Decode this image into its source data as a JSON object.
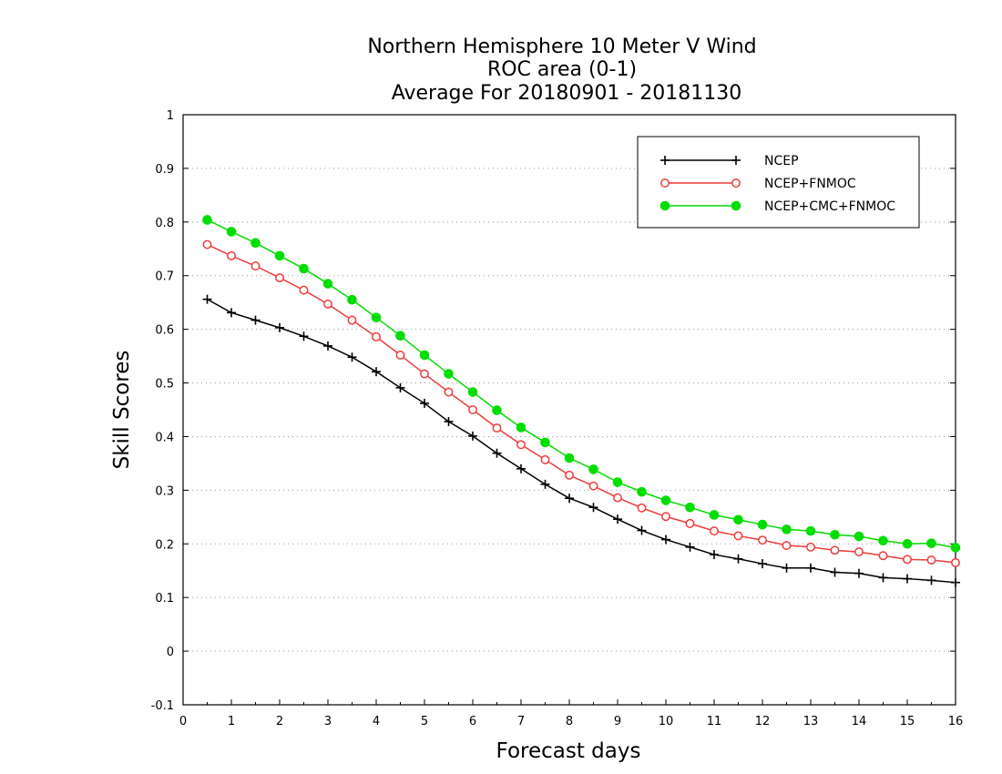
{
  "chart_data": {
    "type": "line",
    "title_lines": [
      "Northern Hemisphere 10 Meter V Wind",
      "ROC area (0-1)",
      "Average For 20180901 - 20181130"
    ],
    "xlabel": "Forecast days",
    "ylabel": "Skill Scores",
    "xlim": [
      0,
      16
    ],
    "ylim": [
      -0.1,
      1
    ],
    "xticks": [
      0,
      1,
      2,
      3,
      4,
      5,
      6,
      7,
      8,
      9,
      10,
      11,
      12,
      13,
      14,
      15,
      16
    ],
    "xtick_labels": [
      "0",
      "1",
      "2",
      "3",
      "4",
      "5",
      "6",
      "7",
      "8",
      "9",
      "10",
      "11",
      "12",
      "13",
      "14",
      "15",
      "16"
    ],
    "yticks": [
      -0.1,
      0,
      0.1,
      0.2,
      0.3,
      0.4,
      0.5,
      0.6,
      0.7,
      0.8,
      0.9,
      1
    ],
    "ytick_labels": [
      "-0.1",
      "0",
      "0.1",
      "0.2",
      "0.3",
      "0.4",
      "0.5",
      "0.6",
      "0.7",
      "0.8",
      "0.9",
      "1"
    ],
    "grid": "horizontal dotted",
    "legend_position": "top-right",
    "x": [
      0.5,
      1,
      1.5,
      2,
      2.5,
      3,
      3.5,
      4,
      4.5,
      5,
      5.5,
      6,
      6.5,
      7,
      7.5,
      8,
      8.5,
      9,
      9.5,
      10,
      10.5,
      11,
      11.5,
      12,
      12.5,
      13,
      13.5,
      14,
      14.5,
      15,
      15.5,
      16
    ],
    "series": [
      {
        "name": "NCEP",
        "color": "#000000",
        "marker": "plus",
        "values": [
          0.656,
          0.631,
          0.617,
          0.603,
          0.587,
          0.569,
          0.548,
          0.521,
          0.491,
          0.462,
          0.428,
          0.401,
          0.369,
          0.34,
          0.311,
          0.285,
          0.268,
          0.246,
          0.225,
          0.208,
          0.194,
          0.18,
          0.172,
          0.163,
          0.155,
          0.155,
          0.147,
          0.145,
          0.137,
          0.135,
          0.132,
          0.128
        ]
      },
      {
        "name": "NCEP+FNMOC",
        "color": "#ee3b3b",
        "marker": "open-circle",
        "values": [
          0.758,
          0.737,
          0.718,
          0.696,
          0.673,
          0.647,
          0.617,
          0.586,
          0.552,
          0.517,
          0.483,
          0.45,
          0.416,
          0.385,
          0.357,
          0.328,
          0.308,
          0.286,
          0.267,
          0.251,
          0.238,
          0.224,
          0.215,
          0.207,
          0.197,
          0.194,
          0.188,
          0.185,
          0.178,
          0.171,
          0.17,
          0.165
        ]
      },
      {
        "name": "NCEP+CMC+FNMOC",
        "color": "#00dd00",
        "marker": "filled-circle",
        "values": [
          0.804,
          0.782,
          0.761,
          0.737,
          0.713,
          0.685,
          0.655,
          0.622,
          0.588,
          0.552,
          0.517,
          0.483,
          0.449,
          0.417,
          0.389,
          0.36,
          0.339,
          0.315,
          0.297,
          0.281,
          0.268,
          0.254,
          0.245,
          0.236,
          0.227,
          0.224,
          0.217,
          0.214,
          0.206,
          0.2,
          0.201,
          0.193
        ]
      }
    ]
  }
}
